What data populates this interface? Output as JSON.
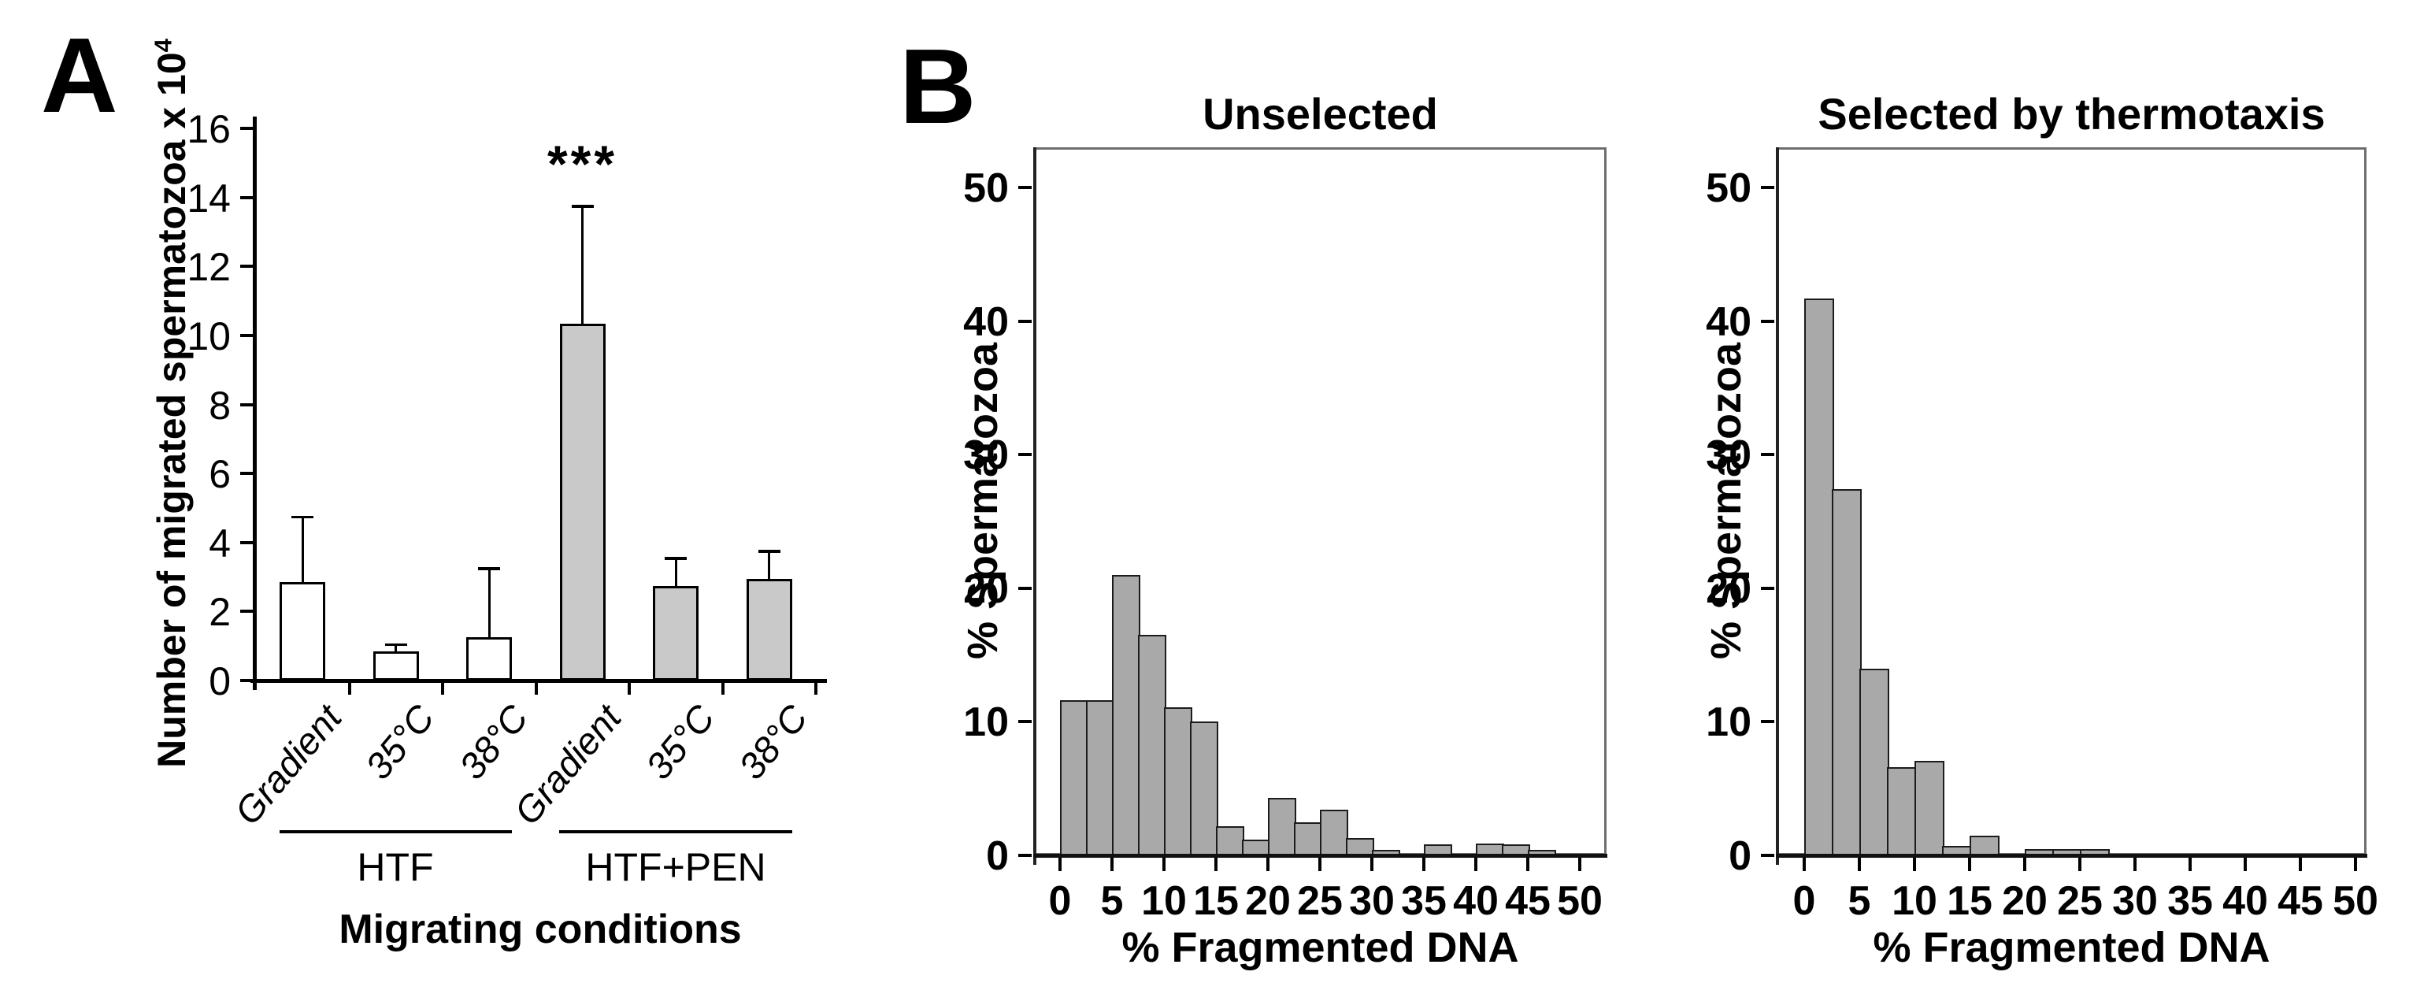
{
  "figure": {
    "panel_a_label": "A",
    "panel_b_label": "B"
  },
  "colors": {
    "background": "#ffffff",
    "axis": "#000000",
    "box_border": "#6e6e6e",
    "bar_white": "#ffffff",
    "bar_gray": "#c9c9c9",
    "bar_border": "#000000",
    "hist_bar_fill": "#a9a9a9",
    "hist_bar_border": "#1c1c1c"
  },
  "chart_data": [
    {
      "id": "migrated-spermatozoa-bar-chart",
      "type": "bar",
      "title": "",
      "xlabel": "Migrating conditions",
      "ylabel_base": "Number of migrated spermatozoa x 10",
      "ylabel_exponent": "4",
      "categories": [
        "Gradient",
        "35°C",
        "38°C",
        "Gradient",
        "35°C",
        "38°C"
      ],
      "values": [
        2.8,
        0.8,
        1.2,
        10.3,
        2.7,
        2.9
      ],
      "errors_plus": [
        1.9,
        0.2,
        2.0,
        3.4,
        0.8,
        0.8
      ],
      "bar_fills": [
        "#ffffff",
        "#ffffff",
        "#ffffff",
        "#c9c9c9",
        "#c9c9c9",
        "#c9c9c9"
      ],
      "groups": [
        {
          "label": "HTF",
          "bars": [
            0,
            1,
            2
          ]
        },
        {
          "label": "HTF+PEN",
          "bars": [
            3,
            4,
            5
          ]
        }
      ],
      "significance": {
        "bar_index": 3,
        "label": "***"
      },
      "ylim": [
        0,
        16
      ],
      "yticks": [
        0,
        2,
        4,
        6,
        8,
        10,
        12,
        14,
        16
      ],
      "grid": false,
      "legend": "none"
    },
    {
      "id": "unselected-histogram",
      "type": "histogram",
      "title": "Unselected",
      "xlabel": "% Fragmented DNA",
      "ylabel": "% Spermatozoa",
      "bin_start": 0,
      "bin_width": 2.5,
      "values": [
        11.6,
        11.6,
        21.0,
        16.5,
        11.1,
        10.0,
        2.2,
        1.2,
        4.3,
        2.5,
        3.4,
        1.3,
        0.4,
        0,
        0.8,
        0,
        0.9,
        0.8,
        0.4,
        0
      ],
      "xticks": [
        0,
        5,
        10,
        15,
        20,
        25,
        30,
        35,
        40,
        45,
        50
      ],
      "yticks": [
        0,
        10,
        20,
        30,
        40,
        50
      ],
      "xlim": [
        -2.5,
        52.5
      ],
      "ylim": [
        0,
        53
      ],
      "grid": false,
      "legend": "none"
    },
    {
      "id": "selected-by-thermotaxis-histogram",
      "type": "histogram",
      "title": "Selected by thermotaxis",
      "xlabel": "% Fragmented DNA",
      "ylabel": "% Spermatozoa",
      "bin_start": 0,
      "bin_width": 2.5,
      "values": [
        41.7,
        27.4,
        14.0,
        6.6,
        7.1,
        0.7,
        1.5,
        0,
        0.5,
        0.5,
        0.5,
        0,
        0,
        0,
        0,
        0,
        0,
        0,
        0,
        0
      ],
      "xticks": [
        0,
        5,
        10,
        15,
        20,
        25,
        30,
        35,
        40,
        45,
        50
      ],
      "yticks": [
        0,
        10,
        20,
        30,
        40,
        50
      ],
      "xlim": [
        -2.5,
        51
      ],
      "ylim": [
        0,
        53
      ],
      "grid": false,
      "legend": "none"
    }
  ]
}
